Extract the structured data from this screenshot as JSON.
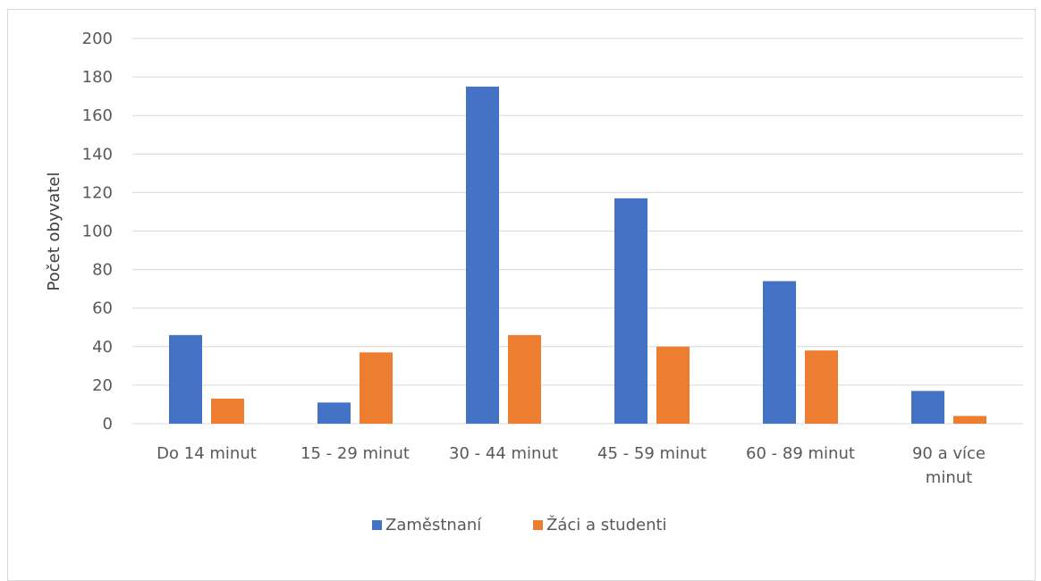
{
  "chart_data": {
    "type": "bar",
    "title": "",
    "xlabel": "",
    "ylabel": "Počet obyvatel",
    "ylim": [
      0,
      200
    ],
    "yticks": [
      0,
      20,
      40,
      60,
      80,
      100,
      120,
      140,
      160,
      180,
      200
    ],
    "grid": true,
    "legend_position": "bottom",
    "categories": [
      [
        "Do 14 minut"
      ],
      [
        "15 - 29 minut"
      ],
      [
        "30 - 44 minut"
      ],
      [
        "45 - 59 minut"
      ],
      [
        "60 - 89 minut"
      ],
      [
        "90 a více",
        "minut"
      ]
    ],
    "series": [
      {
        "name": "Zaměstnaní",
        "color": "#4472c4",
        "values": [
          46,
          11,
          175,
          117,
          74,
          17
        ]
      },
      {
        "name": "Žáci a studenti",
        "color": "#ed7d31",
        "values": [
          13,
          37,
          46,
          40,
          38,
          4
        ]
      }
    ]
  }
}
